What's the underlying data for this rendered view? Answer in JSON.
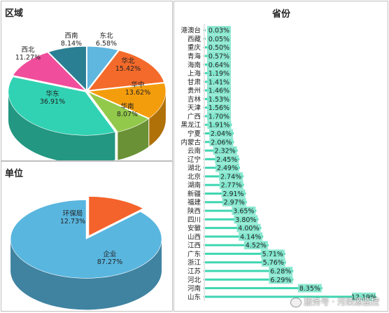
{
  "region_panel": {
    "title": "区域"
  },
  "unit_panel": {
    "title": "单位"
  },
  "province_panel": {
    "title": "省份"
  },
  "watermark": {
    "text": "服务号 · 污染源监控"
  },
  "chart_data": [
    {
      "type": "pie",
      "title": "区域",
      "categories": [
        "东北",
        "华北",
        "华中",
        "华南",
        "华东",
        "西北",
        "西南"
      ],
      "values": [
        6.58,
        15.42,
        13.62,
        8.07,
        36.91,
        11.27,
        8.14
      ],
      "labels": [
        "6.58%",
        "15.42%",
        "13.62%",
        "8.07%",
        "36.91%",
        "11.27%",
        "8.14%"
      ],
      "colors": [
        "#5fb6df",
        "#f46a2a",
        "#f49d0c",
        "#93c94a",
        "#31d2b3",
        "#f04e9c",
        "#2a7f93"
      ]
    },
    {
      "type": "pie",
      "title": "单位",
      "categories": [
        "环保局",
        "企业"
      ],
      "values": [
        12.73,
        87.27
      ],
      "labels": [
        "12.73%",
        "87.27%"
      ],
      "colors": [
        "#f4632b",
        "#59b6df"
      ]
    },
    {
      "type": "bar",
      "title": "省份",
      "orientation": "horizontal",
      "categories": [
        "港澳台",
        "西藏",
        "重庆",
        "青海",
        "海南",
        "上海",
        "甘肃",
        "贵州",
        "吉林",
        "天津",
        "广西",
        "黑龙江",
        "宁夏",
        "内蒙古",
        "云南",
        "辽宁",
        "湖北",
        "北京",
        "湖南",
        "新疆",
        "福建",
        "陕西",
        "四川",
        "安徽",
        "山西",
        "江西",
        "广东",
        "浙江",
        "江苏",
        "河北",
        "河南",
        "山东"
      ],
      "values": [
        0.03,
        0.05,
        0.5,
        0.57,
        0.64,
        1.19,
        1.41,
        1.46,
        1.53,
        1.56,
        1.7,
        1.91,
        2.04,
        2.06,
        2.32,
        2.45,
        2.49,
        2.74,
        2.77,
        2.91,
        2.97,
        3.65,
        3.8,
        4.0,
        4.14,
        4.52,
        5.71,
        5.76,
        6.28,
        6.29,
        8.35,
        12.19
      ],
      "labels": [
        "0.03%",
        "0.05%",
        "0.50%",
        "0.57%",
        "0.64%",
        "1.19%",
        "1.41%",
        "1.46%",
        "1.53%",
        "1.56%",
        "1.70%",
        "1.91%",
        "2.04%",
        "2.06%",
        "2.32%",
        "2.45%",
        "2.49%",
        "2.74%",
        "2.77%",
        "2.91%",
        "2.97%",
        "3.65%",
        "3.80%",
        "4.00%",
        "4.14%",
        "4.52%",
        "5.71%",
        "5.76%",
        "6.28%",
        "6.29%",
        "8.35%",
        "12.19%"
      ],
      "color": "#3fd6b1",
      "label_bg": "#7ee6cc"
    }
  ]
}
